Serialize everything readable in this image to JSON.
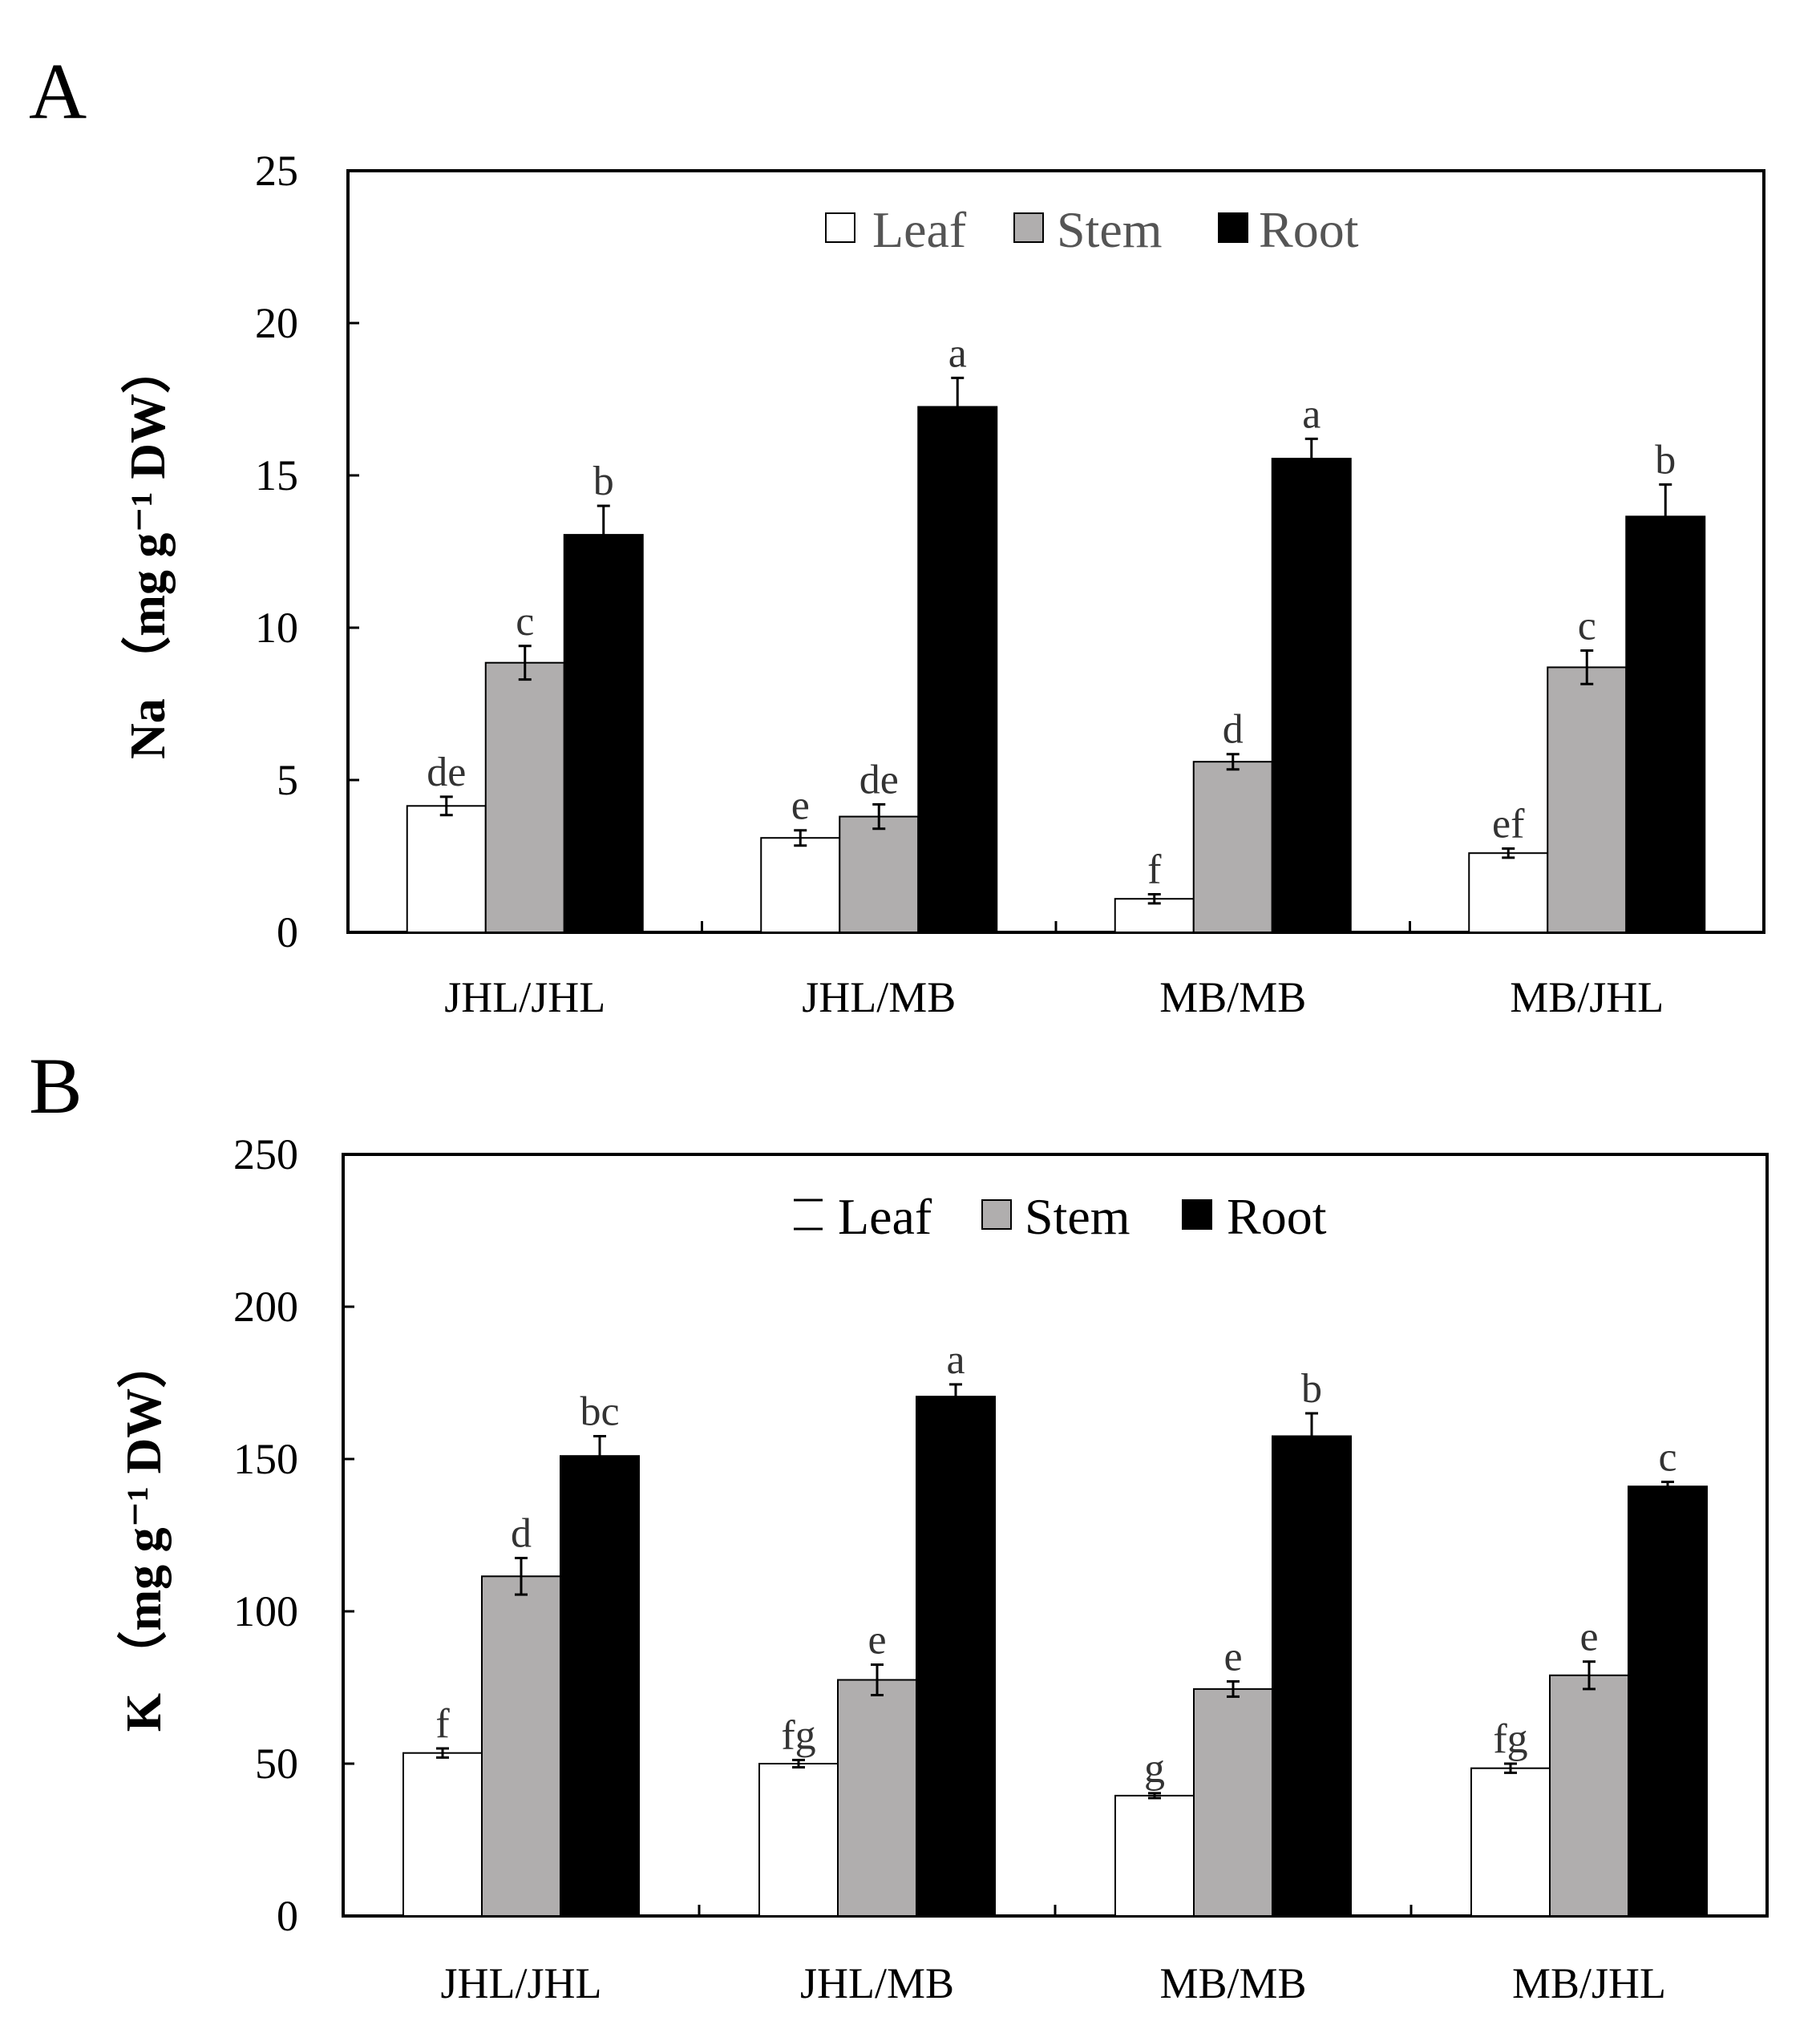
{
  "colors": {
    "leaf": "#ffffff",
    "stem": "#b0aeae",
    "root": "#000000",
    "axis": "#000000",
    "letter": "#333333",
    "legend_text": "#555555"
  },
  "chart_data": [
    {
      "type": "bar",
      "panel_label": "A",
      "ylabel": "Na （mg g⁻¹ DW）",
      "ylim": [
        0,
        25
      ],
      "yticks": [
        "0",
        "5",
        "10",
        "15",
        "20",
        "25"
      ],
      "categories": [
        "JHL/JHL",
        "JHL/MB",
        "MB/MB",
        "MB/JHL"
      ],
      "legend": [
        "Leaf",
        "Stem",
        "Root"
      ],
      "legend_position": "top-center",
      "series": [
        {
          "name": "Leaf",
          "values": [
            4.15,
            3.1,
            1.1,
            2.6
          ],
          "errors": [
            0.3,
            0.25,
            0.15,
            0.15
          ],
          "letters": [
            "de",
            "e",
            "f",
            "ef"
          ]
        },
        {
          "name": "Stem",
          "values": [
            8.85,
            3.8,
            5.6,
            8.7
          ],
          "errors": [
            0.55,
            0.4,
            0.25,
            0.55
          ],
          "letters": [
            "c",
            "de",
            "d",
            "c"
          ]
        },
        {
          "name": "Root",
          "values": [
            13.05,
            17.25,
            15.55,
            13.65
          ],
          "errors": [
            0.95,
            0.95,
            0.65,
            1.05
          ],
          "letters": [
            "b",
            "a",
            "a",
            "b"
          ]
        }
      ]
    },
    {
      "type": "bar",
      "panel_label": "B",
      "ylabel": "K （mg g⁻¹ DW）",
      "ylim": [
        0,
        250
      ],
      "yticks": [
        "0",
        "50",
        "100",
        "150",
        "200",
        "250"
      ],
      "categories": [
        "JHL/JHL",
        "JHL/MB",
        "MB/MB",
        "MB/JHL"
      ],
      "legend": [
        "Leaf",
        "Stem",
        "Root"
      ],
      "legend_position": "top-center",
      "series": [
        {
          "name": "Leaf",
          "values": [
            53.5,
            50,
            39.5,
            48.5
          ],
          "errors": [
            1.5,
            1.2,
            0.8,
            1.5
          ],
          "letters": [
            "f",
            "fg",
            "g",
            "fg"
          ]
        },
        {
          "name": "Stem",
          "values": [
            111.5,
            77.5,
            74.5,
            79
          ],
          "errors": [
            6,
            5,
            2.5,
            4.5
          ],
          "letters": [
            "d",
            "e",
            "e",
            "e"
          ]
        },
        {
          "name": "Root",
          "values": [
            151,
            170.5,
            157.5,
            141
          ],
          "errors": [
            6.5,
            4,
            7.5,
            1.5
          ],
          "letters": [
            "bc",
            "a",
            "b",
            "c"
          ]
        }
      ]
    }
  ]
}
